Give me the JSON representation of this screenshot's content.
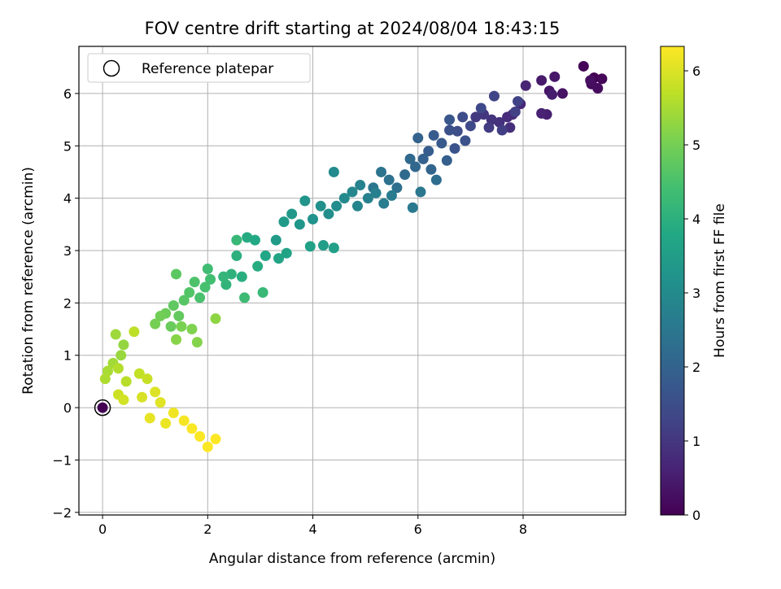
{
  "chart_data": {
    "type": "scatter",
    "title": "FOV centre drift starting at 2024/08/04 18:43:15",
    "xlabel": "Angular distance from reference (arcmin)",
    "ylabel": "Rotation from reference (arcmin)",
    "xlim": [
      -0.45,
      9.95
    ],
    "ylim": [
      -2.05,
      6.9
    ],
    "xticks": [
      0,
      2,
      4,
      6,
      8
    ],
    "yticks": [
      -2,
      -1,
      0,
      1,
      2,
      3,
      4,
      5,
      6
    ],
    "xtick_labels": [
      "0",
      "2",
      "4",
      "6",
      "8"
    ],
    "ytick_labels": [
      "−2",
      "−1",
      "0",
      "1",
      "2",
      "3",
      "4",
      "5",
      "6"
    ],
    "grid": true,
    "legend": {
      "placement": "top-left",
      "entries": [
        {
          "label": "Reference platepar",
          "marker": "open-circle"
        }
      ]
    },
    "colorbar": {
      "label": "Hours from first FF file",
      "colormap": "viridis",
      "range": [
        0,
        6.33
      ],
      "ticks": [
        0,
        1,
        2,
        3,
        4,
        5,
        6
      ],
      "tick_labels": [
        "0",
        "1",
        "2",
        "3",
        "4",
        "5",
        "6"
      ]
    },
    "reference_point": {
      "x": 0,
      "y": 0
    },
    "points": [
      [
        9.35,
        6.3,
        0.0
      ],
      [
        9.15,
        6.52,
        0.05
      ],
      [
        9.5,
        6.28,
        0.1
      ],
      [
        9.3,
        6.18,
        0.15
      ],
      [
        9.42,
        6.1,
        0.2
      ],
      [
        9.28,
        6.25,
        0.25
      ],
      [
        8.75,
        6.0,
        0.3
      ],
      [
        8.5,
        6.05,
        0.35
      ],
      [
        8.6,
        6.32,
        0.4
      ],
      [
        8.35,
        6.25,
        0.45
      ],
      [
        8.55,
        5.98,
        0.5
      ],
      [
        8.45,
        5.6,
        0.55
      ],
      [
        8.35,
        5.62,
        0.6
      ],
      [
        8.05,
        6.15,
        0.65
      ],
      [
        7.95,
        5.8,
        0.7
      ],
      [
        7.8,
        5.6,
        0.75
      ],
      [
        7.7,
        5.55,
        0.8
      ],
      [
        7.75,
        5.35,
        0.85
      ],
      [
        7.55,
        5.45,
        0.9
      ],
      [
        7.4,
        5.5,
        0.95
      ],
      [
        7.25,
        5.6,
        1.0
      ],
      [
        7.1,
        5.55,
        1.05
      ],
      [
        7.35,
        5.35,
        1.1
      ],
      [
        7.6,
        5.3,
        1.15
      ],
      [
        7.85,
        5.65,
        1.2
      ],
      [
        7.9,
        5.85,
        1.25
      ],
      [
        7.45,
        5.95,
        1.3
      ],
      [
        7.2,
        5.72,
        1.35
      ],
      [
        7.0,
        5.38,
        1.4
      ],
      [
        6.85,
        5.55,
        1.45
      ],
      [
        6.75,
        5.28,
        1.5
      ],
      [
        6.6,
        5.3,
        1.55
      ],
      [
        6.9,
        5.1,
        1.6
      ],
      [
        6.7,
        4.95,
        1.65
      ],
      [
        6.6,
        5.5,
        1.7
      ],
      [
        6.45,
        5.05,
        1.75
      ],
      [
        6.3,
        5.2,
        1.8
      ],
      [
        6.2,
        4.9,
        1.85
      ],
      [
        6.55,
        4.72,
        1.9
      ],
      [
        6.1,
        4.75,
        1.95
      ],
      [
        6.0,
        5.15,
        2.0
      ],
      [
        6.25,
        4.55,
        2.05
      ],
      [
        5.95,
        4.6,
        2.1
      ],
      [
        5.85,
        4.75,
        2.15
      ],
      [
        5.75,
        4.45,
        2.2
      ],
      [
        6.35,
        4.35,
        2.25
      ],
      [
        5.6,
        4.2,
        2.3
      ],
      [
        5.45,
        4.35,
        2.35
      ],
      [
        5.3,
        4.5,
        2.4
      ],
      [
        5.15,
        4.2,
        2.45
      ],
      [
        6.05,
        4.12,
        2.5
      ],
      [
        5.9,
        3.82,
        2.55
      ],
      [
        5.5,
        4.05,
        2.6
      ],
      [
        5.35,
        3.9,
        2.65
      ],
      [
        5.2,
        4.1,
        2.7
      ],
      [
        5.05,
        4.0,
        2.75
      ],
      [
        4.9,
        4.25,
        2.8
      ],
      [
        4.85,
        3.85,
        2.85
      ],
      [
        4.75,
        4.12,
        2.9
      ],
      [
        4.6,
        4.0,
        2.95
      ],
      [
        4.4,
        4.5,
        3.0
      ],
      [
        4.45,
        3.85,
        3.05
      ],
      [
        4.3,
        3.7,
        3.1
      ],
      [
        4.15,
        3.85,
        3.15
      ],
      [
        4.0,
        3.6,
        3.2
      ],
      [
        3.85,
        3.95,
        3.25
      ],
      [
        3.75,
        3.5,
        3.3
      ],
      [
        3.6,
        3.7,
        3.35
      ],
      [
        3.45,
        3.55,
        3.4
      ],
      [
        3.3,
        3.2,
        3.45
      ],
      [
        4.2,
        3.1,
        3.5
      ],
      [
        4.4,
        3.05,
        3.55
      ],
      [
        3.95,
        3.08,
        3.6
      ],
      [
        3.5,
        2.95,
        3.65
      ],
      [
        3.35,
        2.85,
        3.7
      ],
      [
        3.1,
        2.9,
        3.75
      ],
      [
        2.9,
        3.2,
        3.8
      ],
      [
        2.75,
        3.25,
        3.85
      ],
      [
        2.95,
        2.7,
        3.9
      ],
      [
        2.65,
        2.5,
        3.95
      ],
      [
        2.55,
        2.9,
        4.0
      ],
      [
        2.45,
        2.55,
        4.05
      ],
      [
        2.35,
        2.35,
        4.1
      ],
      [
        2.3,
        2.5,
        4.15
      ],
      [
        2.55,
        3.2,
        4.2
      ],
      [
        3.05,
        2.2,
        4.25
      ],
      [
        2.7,
        2.1,
        4.3
      ],
      [
        2.0,
        2.65,
        4.35
      ],
      [
        2.05,
        2.45,
        4.4
      ],
      [
        1.95,
        2.3,
        4.45
      ],
      [
        1.85,
        2.1,
        4.5
      ],
      [
        1.75,
        2.4,
        4.55
      ],
      [
        1.65,
        2.2,
        4.6
      ],
      [
        1.55,
        2.05,
        4.65
      ],
      [
        1.4,
        2.55,
        4.7
      ],
      [
        1.35,
        1.95,
        4.75
      ],
      [
        1.45,
        1.75,
        4.8
      ],
      [
        1.3,
        1.55,
        4.85
      ],
      [
        1.2,
        1.8,
        4.9
      ],
      [
        1.1,
        1.75,
        4.95
      ],
      [
        1.0,
        1.6,
        5.0
      ],
      [
        1.5,
        1.55,
        5.05
      ],
      [
        1.7,
        1.5,
        5.1
      ],
      [
        1.8,
        1.25,
        5.15
      ],
      [
        1.4,
        1.3,
        5.2
      ],
      [
        2.15,
        1.7,
        5.25
      ],
      [
        0.4,
        1.2,
        5.3
      ],
      [
        0.35,
        1.0,
        5.35
      ],
      [
        0.25,
        1.4,
        5.4
      ],
      [
        0.2,
        0.85,
        5.45
      ],
      [
        0.1,
        0.7,
        5.5
      ],
      [
        0.05,
        0.55,
        5.55
      ],
      [
        0.3,
        0.75,
        5.6
      ],
      [
        0.45,
        0.5,
        5.65
      ],
      [
        0.6,
        1.45,
        5.7
      ],
      [
        0.7,
        0.65,
        5.75
      ],
      [
        0.85,
        0.55,
        5.8
      ],
      [
        0.3,
        0.25,
        5.85
      ],
      [
        0.4,
        0.15,
        5.9
      ],
      [
        0.75,
        0.2,
        5.95
      ],
      [
        1.0,
        0.3,
        6.0
      ],
      [
        1.1,
        0.1,
        6.05
      ],
      [
        0.9,
        -0.2,
        6.1
      ],
      [
        1.2,
        -0.3,
        6.15
      ],
      [
        1.35,
        -0.1,
        6.2
      ],
      [
        1.55,
        -0.25,
        6.25
      ],
      [
        1.7,
        -0.4,
        6.3
      ],
      [
        1.85,
        -0.55,
        6.3
      ],
      [
        2.0,
        -0.75,
        6.32
      ],
      [
        2.15,
        -0.6,
        6.33
      ]
    ]
  }
}
